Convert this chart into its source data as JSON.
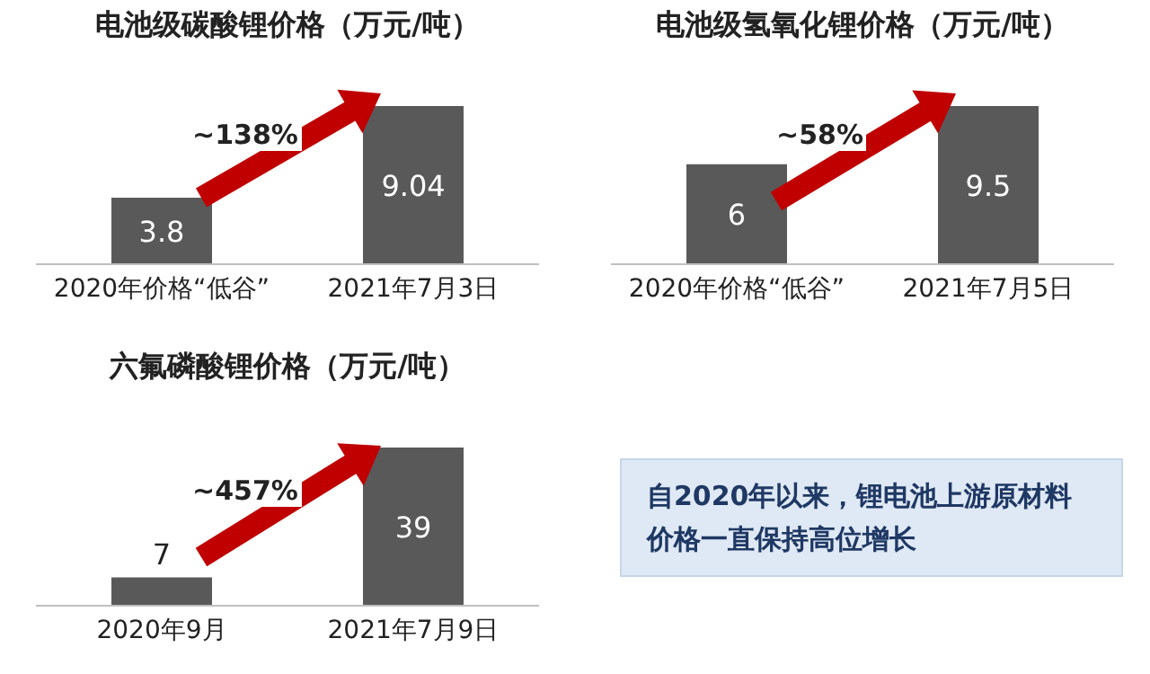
{
  "chart_data": [
    {
      "type": "bar",
      "title": "电池级碳酸锂价格（万元/吨）",
      "categories": [
        "2020年价格“低谷”",
        "2021年7月3日"
      ],
      "values": [
        3.8,
        9.04
      ],
      "color": "#595959",
      "tick_labels": "x",
      "data_labels": true,
      "annotations": [
        "~138%"
      ]
    },
    {
      "type": "bar",
      "title": "电池级氢氧化锂价格（万元/吨）",
      "categories": [
        "2020年价格“低谷”",
        "2021年7月5日"
      ],
      "values": [
        6,
        9.5
      ],
      "color": "#595959",
      "tick_labels": "x",
      "data_labels": true,
      "annotations": [
        "~58%"
      ]
    },
    {
      "type": "bar",
      "title": "六氟磷酸锂价格（万元/吨）",
      "categories": [
        "2020年9月",
        "2021年7月9日"
      ],
      "values": [
        7,
        39
      ],
      "color": "#595959",
      "tick_labels": "x",
      "data_labels": true,
      "annotations": [
        "~457%"
      ]
    },
    {
      "type": "other",
      "annotations": [
        "自2020年以来，锂电池上游原材料价格一直保持高位增长"
      ]
    }
  ]
}
